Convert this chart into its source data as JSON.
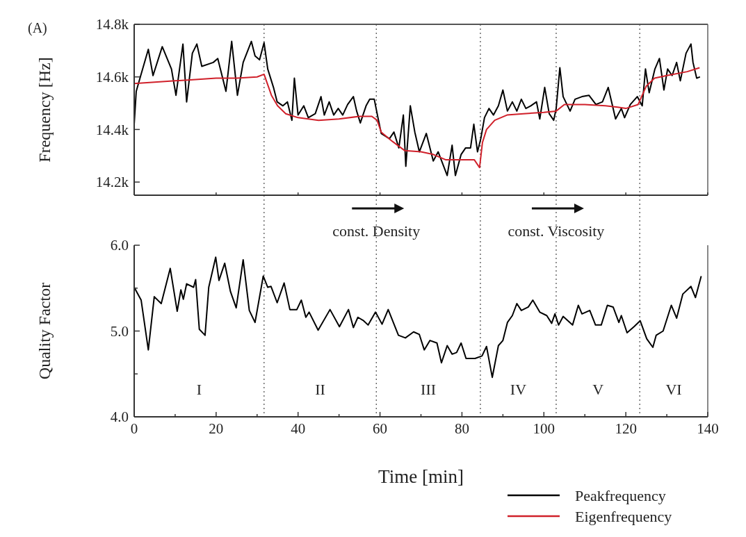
{
  "chart_data": [
    {
      "type": "line",
      "ylabel": "Frequency [Hz]",
      "annotations": [
        "(A)"
      ],
      "xlim": [
        0,
        140
      ],
      "ylim": [
        14150,
        14800
      ],
      "yticks": [
        {
          "value": 14200,
          "label": "14.2k"
        },
        {
          "value": 14400,
          "label": "14.4k"
        },
        {
          "value": 14600,
          "label": "14.6k"
        },
        {
          "value": 14800,
          "label": "14.8k"
        }
      ],
      "xticks": [
        {
          "value": 0,
          "label": null
        },
        {
          "value": 20,
          "label": null
        },
        {
          "value": 40,
          "label": null
        },
        {
          "value": 60,
          "label": null
        },
        {
          "value": 80,
          "label": null
        },
        {
          "value": 100,
          "label": null
        },
        {
          "value": 120,
          "label": null
        },
        {
          "value": 140,
          "label": null
        }
      ],
      "tick_labels": "y",
      "legend": "bottom right",
      "grid": false,
      "line_style": "solid",
      "ref_lines": [
        {
          "axis": "x",
          "value": 31.7,
          "line_style": "dotted"
        },
        {
          "axis": "x",
          "value": 59.1,
          "line_style": "dotted"
        },
        {
          "axis": "x",
          "value": 84.5,
          "line_style": "dotted"
        },
        {
          "axis": "x",
          "value": 103,
          "line_style": "dotted"
        },
        {
          "axis": "x",
          "value": 123.4,
          "line_style": "dotted"
        }
      ],
      "series": [
        {
          "name": "Peakfrequency",
          "color": "#000000",
          "x": [
            0,
            0.5,
            1.5,
            3.45,
            4.6,
            6.85,
            9.1,
            10.2,
            11.9,
            12.8,
            14.2,
            15.3,
            16.5,
            19.3,
            20.4,
            22.4,
            23.8,
            25.2,
            26.6,
            28.6,
            29.5,
            30.6,
            31.7,
            32.6,
            34,
            34.9,
            36.3,
            37.4,
            38.5,
            39.1,
            40,
            41.4,
            42.5,
            44.2,
            45.6,
            46.4,
            47.6,
            48.7,
            49.8,
            50.9,
            52.1,
            53.5,
            54.3,
            55.2,
            56.6,
            57.5,
            58.6,
            59.5,
            60.3,
            62.3,
            63.4,
            64.6,
            65.7,
            66.3,
            67.4,
            68.5,
            69.6,
            71.3,
            73,
            74.2,
            76.4,
            77.6,
            78.4,
            79.8,
            80.9,
            82.1,
            82.9,
            83.8,
            84.6,
            85.5,
            86.6,
            87.7,
            88.9,
            90,
            91.1,
            92.3,
            93.4,
            94.5,
            95.6,
            96.8,
            98.2,
            99,
            100.2,
            101.3,
            102.4,
            103,
            103.9,
            104.7,
            106.4,
            107.6,
            109.3,
            111,
            112.7,
            114.3,
            115.7,
            116.6,
            117.5,
            118.9,
            119.7,
            121.1,
            122.8,
            124,
            124.8,
            125.7,
            127.1,
            128.2,
            129.3,
            130.2,
            131.3,
            132.4,
            133.3,
            134.7,
            135.9,
            136.4,
            137.3,
            138.1
          ],
          "values": [
            14420,
            14545,
            14600,
            14705,
            14605,
            14715,
            14630,
            14530,
            14725,
            14505,
            14690,
            14725,
            14640,
            14655,
            14670,
            14545,
            14735,
            14530,
            14655,
            14735,
            14680,
            14665,
            14730,
            14630,
            14560,
            14505,
            14490,
            14505,
            14435,
            14595,
            14455,
            14490,
            14445,
            14460,
            14525,
            14455,
            14505,
            14455,
            14480,
            14455,
            14495,
            14525,
            14470,
            14425,
            14490,
            14515,
            14515,
            14445,
            14385,
            14365,
            14390,
            14330,
            14455,
            14260,
            14490,
            14390,
            14315,
            14385,
            14280,
            14315,
            14225,
            14340,
            14225,
            14305,
            14330,
            14330,
            14420,
            14315,
            14365,
            14445,
            14480,
            14455,
            14490,
            14550,
            14470,
            14505,
            14470,
            14515,
            14480,
            14490,
            14505,
            14440,
            14560,
            14460,
            14435,
            14480,
            14635,
            14525,
            14470,
            14515,
            14525,
            14530,
            14495,
            14505,
            14560,
            14500,
            14440,
            14480,
            14445,
            14495,
            14525,
            14490,
            14630,
            14540,
            14630,
            14670,
            14550,
            14630,
            14605,
            14655,
            14585,
            14690,
            14725,
            14655,
            14595,
            14600
          ]
        },
        {
          "name": "Eigenfrequency",
          "color": "#d0202a",
          "x": [
            0,
            5,
            10,
            15,
            20,
            25,
            30,
            31.7,
            33.5,
            35,
            37,
            40,
            45,
            50,
            55,
            58,
            59.3,
            60.3,
            63,
            66,
            70,
            73,
            76,
            80,
            83,
            84.3,
            85,
            86,
            88,
            91,
            95,
            100,
            103,
            105,
            110,
            115,
            118,
            120,
            123,
            125,
            127,
            130,
            135,
            138
          ],
          "values": [
            14575,
            14580,
            14585,
            14590,
            14595,
            14595,
            14600,
            14610,
            14530,
            14490,
            14460,
            14445,
            14435,
            14440,
            14450,
            14450,
            14435,
            14390,
            14355,
            14320,
            14315,
            14305,
            14285,
            14285,
            14285,
            14255,
            14350,
            14400,
            14435,
            14455,
            14460,
            14465,
            14470,
            14495,
            14495,
            14490,
            14485,
            14480,
            14495,
            14565,
            14595,
            14605,
            14620,
            14635
          ]
        }
      ]
    },
    {
      "type": "line",
      "xlabel": "Time [min]",
      "ylabel": "Quality Factor",
      "annotations": [
        "const. Density",
        "const. Viscosity",
        "I",
        "II",
        "III",
        "IV",
        "V",
        "VI"
      ],
      "xlim": [
        0,
        140
      ],
      "ylim": [
        4,
        6
      ],
      "xticks": [
        0,
        {
          "value": 10,
          "label": null
        },
        20,
        {
          "value": 30,
          "label": null
        },
        40,
        {
          "value": 50,
          "label": null
        },
        60,
        {
          "value": 70,
          "label": null
        },
        80,
        {
          "value": 90,
          "label": null
        },
        100,
        {
          "value": 110,
          "label": null
        },
        120,
        {
          "value": 130,
          "label": null
        },
        140
      ],
      "yticks": [
        {
          "value": 4,
          "label": "4.0"
        },
        {
          "value": 4.5,
          "label": null
        },
        {
          "value": 5,
          "label": "5.0"
        },
        {
          "value": 5.5,
          "label": null
        },
        {
          "value": 6,
          "label": "6.0"
        }
      ],
      "grid": false,
      "line_style": "solid",
      "ref_lines": [
        {
          "axis": "x",
          "value": 31.7,
          "line_style": "dotted"
        },
        {
          "axis": "x",
          "value": 59.1,
          "line_style": "dotted"
        },
        {
          "axis": "x",
          "value": 84.5,
          "line_style": "dotted"
        },
        {
          "axis": "x",
          "value": 103,
          "line_style": "dotted"
        },
        {
          "axis": "x",
          "value": 123.4,
          "line_style": "dotted"
        }
      ],
      "series": [
        {
          "color": "#000000",
          "x": [
            0,
            1.7,
            3.45,
            4.9,
            6.6,
            8.8,
            10.5,
            11.4,
            12,
            12.8,
            14.5,
            15,
            15.9,
            17.3,
            18.2,
            19.9,
            20.7,
            22.1,
            23.5,
            24.9,
            26.6,
            28.1,
            29.5,
            31.5,
            32.6,
            33.4,
            34.9,
            36.6,
            38,
            39.7,
            40.8,
            41.9,
            42.7,
            44.9,
            47.8,
            50.1,
            52.3,
            53.5,
            54.6,
            56,
            57.1,
            58.9,
            60.5,
            62,
            64.5,
            66.2,
            68.2,
            69.6,
            70.8,
            72.2,
            73.9,
            75,
            76.4,
            77.6,
            78.7,
            79.8,
            81,
            83.2,
            84.9,
            86,
            87.4,
            88.9,
            90,
            91.1,
            92.3,
            93.4,
            94.5,
            96.2,
            97.3,
            99,
            100.7,
            101.9,
            102.7,
            103.6,
            104.7,
            107,
            108.4,
            109.3,
            111.2,
            112.6,
            114,
            115.5,
            116.9,
            118.3,
            118.9,
            120.3,
            122,
            123.5,
            125.1,
            126.6,
            127.4,
            129.1,
            131.1,
            132.4,
            133.9,
            135.9,
            137,
            138.4
          ],
          "values": [
            5.51,
            5.36,
            4.78,
            5.4,
            5.32,
            5.73,
            5.23,
            5.48,
            5.37,
            5.55,
            5.51,
            5.6,
            5.02,
            4.95,
            5.51,
            5.86,
            5.59,
            5.79,
            5.46,
            5.27,
            5.83,
            5.24,
            5.1,
            5.64,
            5.51,
            5.52,
            5.33,
            5.56,
            5.25,
            5.25,
            5.36,
            5.16,
            5.22,
            5.01,
            5.25,
            5.05,
            5.25,
            5.04,
            5.16,
            5.12,
            5.07,
            5.22,
            5.08,
            5.25,
            4.95,
            4.92,
            4.99,
            4.96,
            4.78,
            4.89,
            4.86,
            4.63,
            4.83,
            4.73,
            4.75,
            4.86,
            4.68,
            4.68,
            4.71,
            4.82,
            4.46,
            4.83,
            4.89,
            5.1,
            5.18,
            5.32,
            5.24,
            5.28,
            5.36,
            5.22,
            5.18,
            5.09,
            5.2,
            5.07,
            5.17,
            5.07,
            5.3,
            5.2,
            5.24,
            5.07,
            5.07,
            5.3,
            5.28,
            5.1,
            5.18,
            4.98,
            5.05,
            5.12,
            4.91,
            4.81,
            4.95,
            5,
            5.3,
            5.15,
            5.43,
            5.52,
            5.39,
            5.64
          ]
        }
      ]
    }
  ]
}
